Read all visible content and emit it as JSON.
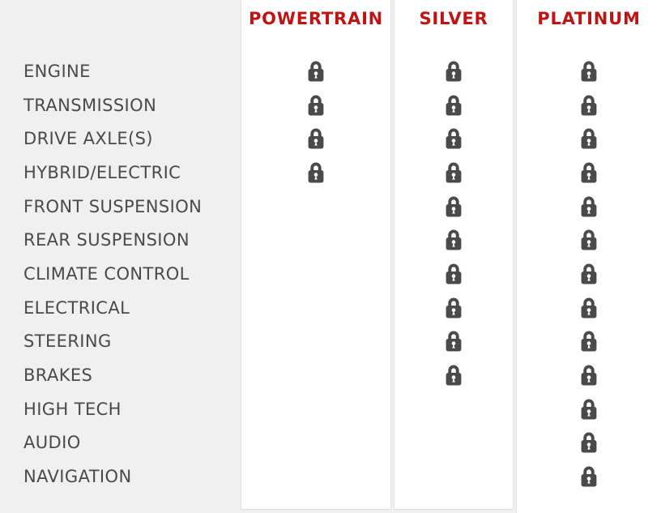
{
  "table": {
    "row_labels": [
      "ENGINE",
      "TRANSMISSION",
      "DRIVE AXLE(S)",
      "HYBRID/ELECTRIC",
      "FRONT SUSPENSION",
      "REAR SUSPENSION",
      "CLIMATE CONTROL",
      "ELECTRICAL",
      "STEERING",
      "BRAKES",
      "HIGH TECH",
      "AUDIO",
      "NAVIGATION"
    ],
    "plans": [
      {
        "name": "POWERTRAIN",
        "coverage": [
          1,
          1,
          1,
          1,
          0,
          0,
          0,
          0,
          0,
          0,
          0,
          0,
          0
        ]
      },
      {
        "name": "SILVER",
        "coverage": [
          1,
          1,
          1,
          1,
          1,
          1,
          1,
          1,
          1,
          1,
          0,
          0,
          0
        ]
      },
      {
        "name": "PLATINUM",
        "coverage": [
          1,
          1,
          1,
          1,
          1,
          1,
          1,
          1,
          1,
          1,
          1,
          1,
          1
        ]
      }
    ],
    "covered_marker_icon": "lock-icon"
  },
  "colors": {
    "page_background": "#f0f0f1",
    "card_background": "#ffffff",
    "card_border": "#e2e2e2",
    "plan_header_red": "#c01414",
    "row_label_gray": "#4a4a4a",
    "lock_gray": "#4a4a4a"
  }
}
